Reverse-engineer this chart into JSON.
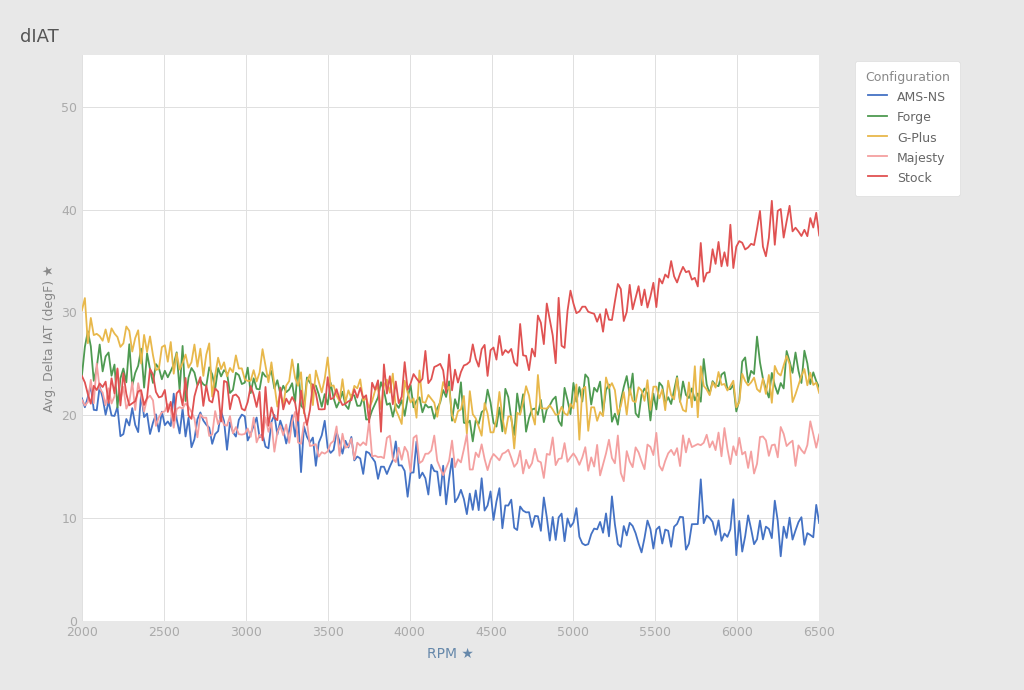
{
  "title": "dIAT",
  "xlabel": "RPM ★",
  "ylabel": "Avg. Delta IAT (degF) ★",
  "xlim": [
    2000,
    6500
  ],
  "ylim": [
    0,
    55
  ],
  "yticks": [
    0,
    10,
    20,
    30,
    40,
    50
  ],
  "xticks": [
    2000,
    2500,
    3000,
    3500,
    4000,
    4500,
    5000,
    5500,
    6000,
    6500
  ],
  "background_color": "#e8e8e8",
  "plot_bg_color": "#ffffff",
  "legend_title": "Configuration",
  "series": {
    "AMS-NS": {
      "color": "#4472c4"
    },
    "Forge": {
      "color": "#4e9a51"
    },
    "G-Plus": {
      "color": "#e8b84b"
    },
    "Majesty": {
      "color": "#f4a0a0"
    },
    "Stock": {
      "color": "#e05252"
    }
  },
  "seed": 42,
  "n_points": 250
}
